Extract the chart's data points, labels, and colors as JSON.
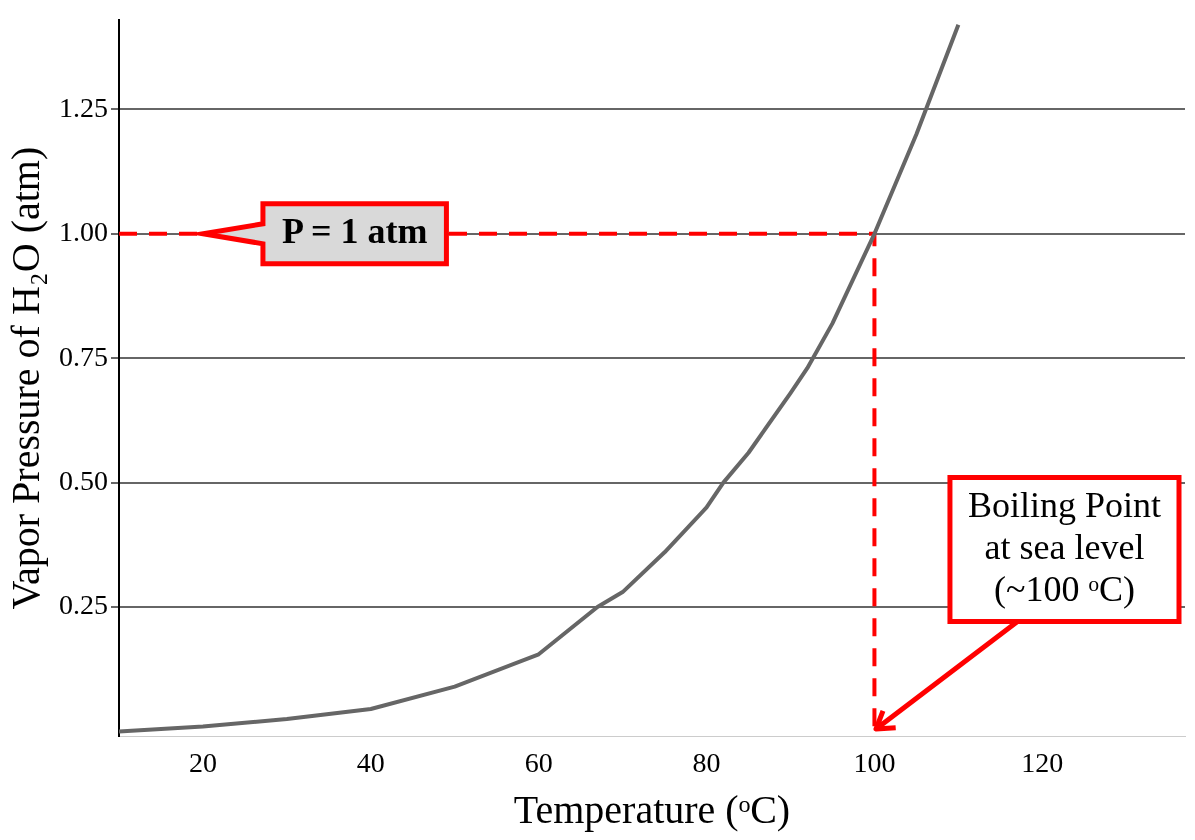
{
  "chart_data": {
    "type": "line",
    "xlabel": "Temperature (ᵒC)",
    "ylabel": "Vapor Pressure of H₂O (atm)",
    "xlim": [
      10,
      137
    ],
    "xticks": [
      20,
      40,
      60,
      80,
      100,
      120
    ],
    "ylim": [
      -0.01,
      1.43
    ],
    "yticks": [
      0.25,
      {
        "value": 0.5,
        "label": "0.50"
      },
      0.75,
      {
        "value": 1.0,
        "label": "1.00"
      },
      1.25
    ],
    "grid": "y",
    "legend": false,
    "marker": "none",
    "series": [
      {
        "color": "#666666",
        "x": [
          10,
          20,
          30,
          40,
          50,
          60,
          67,
          70,
          75,
          80,
          82,
          85,
          90,
          92,
          95,
          100,
          105,
          110
        ],
        "values": [
          0.0,
          0.01,
          0.025,
          0.045,
          0.09,
          0.155,
          0.25,
          0.28,
          0.36,
          0.45,
          0.5,
          0.56,
          0.68,
          0.73,
          0.82,
          1.0,
          1.2,
          1.42
        ]
      },
      {
        "type": "line",
        "line_style": "dashed",
        "color": "#ff0000",
        "x": [
          10,
          100,
          100
        ],
        "values": [
          1.0,
          1.0,
          0.0
        ]
      }
    ],
    "annotations": [
      {
        "text": "P = 1 atm",
        "x": 20,
        "y": 1.0
      },
      {
        "text": "Boiling Point at sea level (~100 ᵒC)",
        "x": 100,
        "y": 0.0
      }
    ]
  }
}
